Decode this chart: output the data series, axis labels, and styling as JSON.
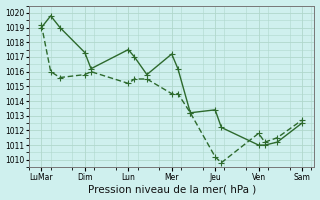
{
  "title": "",
  "xlabel": "Pression niveau de la mer( hPa )",
  "background_color": "#cff0ee",
  "grid_color": "#b0d8cc",
  "line_color": "#2d6a2d",
  "ylim": [
    1009.5,
    1020.5
  ],
  "yticks": [
    1010,
    1011,
    1012,
    1013,
    1014,
    1015,
    1016,
    1017,
    1018,
    1019,
    1020
  ],
  "x_labels": [
    "LuMar",
    "Dim",
    "Lun",
    "Mer",
    "Jeu",
    "Ven",
    "Sam"
  ],
  "x_day_positions": [
    0,
    28,
    56,
    84,
    112,
    140,
    168
  ],
  "series1_x": [
    0,
    6,
    12,
    28,
    32,
    56,
    60,
    68,
    84,
    88,
    96,
    112,
    116,
    140,
    144,
    152,
    168
  ],
  "series1_y": [
    1019.0,
    1019.8,
    1019.0,
    1017.3,
    1016.2,
    1017.5,
    1017.0,
    1015.8,
    1017.2,
    1016.2,
    1013.2,
    1013.4,
    1012.2,
    1011.0,
    1011.0,
    1011.2,
    1012.5
  ],
  "series2_x": [
    0,
    6,
    12,
    28,
    32,
    56,
    60,
    68,
    84,
    88,
    96,
    112,
    116,
    140,
    144,
    152,
    168
  ],
  "series2_y": [
    1019.2,
    1016.0,
    1015.6,
    1015.8,
    1016.0,
    1015.2,
    1015.5,
    1015.5,
    1014.5,
    1014.5,
    1013.2,
    1010.2,
    1009.8,
    1011.8,
    1011.2,
    1011.5,
    1012.7
  ],
  "marker_size": 3,
  "line_width": 1.0,
  "tick_fontsize": 5.5,
  "xlabel_fontsize": 7.5
}
